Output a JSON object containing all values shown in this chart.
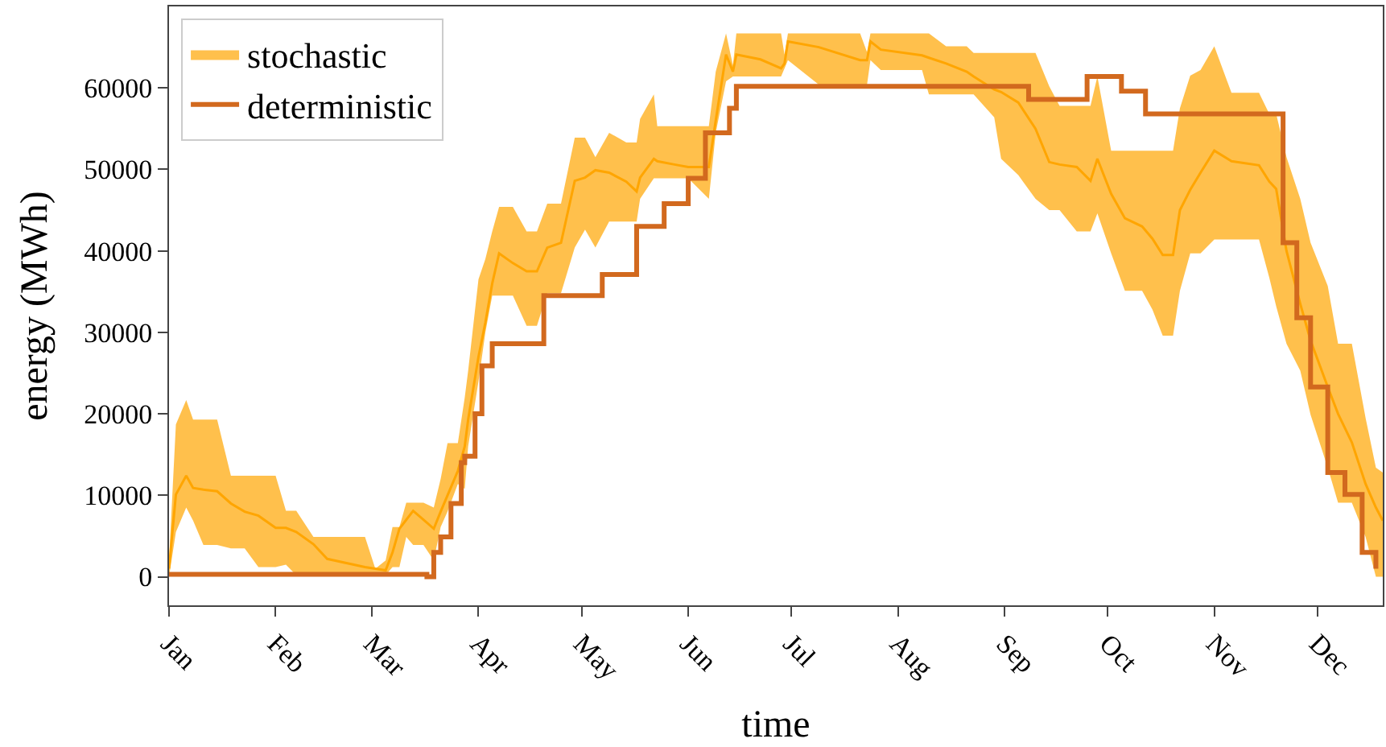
{
  "chart_data": {
    "type": "line",
    "xlabel": "time",
    "ylabel": "energy (MWh)",
    "xlim": [
      "--01-01",
      "--12-20"
    ],
    "xticks": [
      {
        "value": "--01-01",
        "label": "Jan"
      },
      {
        "value": "--02-01",
        "label": "Feb"
      },
      {
        "value": "--03-01",
        "label": "Mar"
      },
      {
        "value": "--04-01",
        "label": "Apr"
      },
      {
        "value": "--05-01",
        "label": "May"
      },
      {
        "value": "--06-01",
        "label": "Jun"
      },
      {
        "value": "--07-01",
        "label": "Jul"
      },
      {
        "value": "--08-01",
        "label": "Aug"
      },
      {
        "value": "--09-01",
        "label": "Sep"
      },
      {
        "value": "--10-01",
        "label": "Oct"
      },
      {
        "value": "--11-01",
        "label": "Nov"
      },
      {
        "value": "--12-01",
        "label": "Dec"
      }
    ],
    "ylim": [
      -3500,
      70000
    ],
    "yticks": [
      0,
      10000,
      20000,
      30000,
      40000,
      50000,
      60000
    ],
    "grid": false,
    "legend": "top left",
    "series": [
      {
        "name": "stochastic",
        "color": "#ffa500",
        "x": [
          "--01-01",
          "--01-03",
          "--01-06",
          "--01-08",
          "--01-11",
          "--01-15",
          "--01-19",
          "--01-23",
          "--01-27",
          "--02-01",
          "--02-04",
          "--02-07",
          "--02-12",
          "--02-16",
          "--02-27",
          "--03-02",
          "--03-05",
          "--03-07",
          "--03-09",
          "--03-11",
          "--03-13",
          "--03-16",
          "--03-19",
          "--03-21",
          "--03-23",
          "--03-26",
          "--03-28",
          "--03-29",
          "--04-01",
          "--04-03",
          "--04-05",
          "--04-07",
          "--04-11",
          "--04-15",
          "--04-18",
          "--04-21",
          "--04-25",
          "--04-29",
          "--05-02",
          "--05-05",
          "--05-09",
          "--05-14",
          "--05-17",
          "--05-18",
          "--05-22",
          "--05-23",
          "--05-28",
          "--06-01",
          "--06-07",
          "--06-09",
          "--06-12",
          "--06-14",
          "--06-15",
          "--06-22",
          "--06-28",
          "--06-29",
          "--06-30",
          "--07-09",
          "--07-21",
          "--07-23",
          "--07-24",
          "--07-27",
          "--08-08",
          "--08-10",
          "--08-15",
          "--08-21",
          "--08-23",
          "--08-29",
          "--08-31",
          "--09-05",
          "--09-10",
          "--09-14",
          "--09-17",
          "--09-22",
          "--09-26",
          "--09-28",
          "--10-02",
          "--10-06",
          "--10-11",
          "--10-14",
          "--10-17",
          "--10-20",
          "--10-22",
          "--10-25",
          "--10-28",
          "--11-01",
          "--11-06",
          "--11-14",
          "--11-17",
          "--11-19",
          "--11-22",
          "--11-26",
          "--11-29",
          "--12-04",
          "--12-07",
          "--12-11",
          "--12-15",
          "--12-18",
          "--12-20"
        ],
        "values": [
          1000,
          10100,
          12400,
          10900,
          10700,
          10500,
          9000,
          8000,
          7500,
          6000,
          6000,
          5500,
          4000,
          2200,
          1200,
          1000,
          800,
          3000,
          5900,
          7000,
          8100,
          7000,
          5900,
          8000,
          10000,
          13000,
          16000,
          19300,
          27000,
          31200,
          36000,
          39700,
          38500,
          37500,
          37500,
          40400,
          41000,
          48600,
          49000,
          49900,
          49600,
          48500,
          47300,
          49000,
          51300,
          51000,
          50600,
          50300,
          50300,
          56000,
          64100,
          62000,
          64100,
          63500,
          62400,
          63000,
          65700,
          65000,
          63400,
          63400,
          65700,
          64700,
          64000,
          63700,
          63000,
          62000,
          61400,
          59800,
          59500,
          58200,
          55000,
          50900,
          50600,
          50300,
          48600,
          51300,
          47000,
          44000,
          43000,
          41500,
          39500,
          39500,
          45000,
          47500,
          49600,
          52300,
          51000,
          50500,
          48500,
          47600,
          40000,
          33500,
          29000,
          23300,
          20000,
          16500,
          11400,
          8500,
          6900
        ],
        "lower": [
          0,
          5500,
          8500,
          6900,
          3900,
          3900,
          3500,
          3500,
          1200,
          1200,
          1500,
          200,
          200,
          200,
          200,
          200,
          200,
          1200,
          1200,
          4900,
          3900,
          3900,
          2000,
          6100,
          8000,
          11400,
          10800,
          16000,
          24000,
          30000,
          34500,
          34500,
          34500,
          30800,
          30800,
          34800,
          34800,
          40400,
          42600,
          40400,
          43600,
          43600,
          43600,
          46400,
          48900,
          48900,
          48900,
          48900,
          46400,
          54500,
          60800,
          61400,
          61400,
          61400,
          61400,
          62400,
          63400,
          60400,
          60400,
          60400,
          63400,
          62200,
          62200,
          59200,
          59200,
          59200,
          59200,
          56400,
          51300,
          49300,
          46400,
          45000,
          45000,
          42400,
          42400,
          44600,
          39700,
          35100,
          35100,
          32800,
          29600,
          29600,
          35100,
          39700,
          39700,
          41400,
          41400,
          41400,
          36700,
          33200,
          28600,
          25300,
          19900,
          13400,
          9100,
          9100,
          4900,
          0,
          0
        ],
        "upper": [
          2000,
          18700,
          21700,
          19300,
          19300,
          19300,
          12400,
          12400,
          12400,
          12400,
          8100,
          8100,
          4900,
          4900,
          4900,
          1000,
          2000,
          6100,
          6100,
          9100,
          9100,
          9100,
          8500,
          12000,
          16400,
          16400,
          22000,
          25300,
          36500,
          39000,
          42400,
          45400,
          45400,
          42400,
          42400,
          45800,
          45800,
          53900,
          53900,
          51500,
          54500,
          53300,
          53300,
          56200,
          59200,
          55300,
          55300,
          55300,
          55300,
          62000,
          66700,
          62800,
          66700,
          66700,
          66700,
          64100,
          66700,
          66700,
          66700,
          64400,
          66700,
          66700,
          66700,
          66700,
          65100,
          65100,
          64300,
          64300,
          64300,
          64300,
          64300,
          60200,
          57800,
          57800,
          57800,
          61400,
          52300,
          52300,
          52300,
          52300,
          52300,
          52300,
          57500,
          61500,
          62200,
          65100,
          59400,
          59400,
          56800,
          56800,
          51500,
          46400,
          41000,
          35700,
          28600,
          28600,
          19500,
          13400,
          12800
        ]
      },
      {
        "name": "deterministic",
        "type": "step",
        "color": "#d2691e",
        "x": [
          "--01-01",
          "--03-17",
          "--03-19",
          "--03-21",
          "--03-24",
          "--03-27",
          "--03-28",
          "--03-31",
          "--04-02",
          "--04-05",
          "--04-20",
          "--05-07",
          "--05-17",
          "--05-25",
          "--06-01",
          "--06-06",
          "--06-13",
          "--06-15",
          "--09-08",
          "--09-25",
          "--10-05",
          "--10-12",
          "--11-18",
          "--11-21",
          "--11-25",
          "--11-29",
          "--12-04",
          "--12-09",
          "--12-14",
          "--12-18"
        ],
        "values": [
          300,
          0,
          3000,
          4900,
          9000,
          14000,
          14800,
          20000,
          25900,
          28600,
          34500,
          37100,
          43000,
          45800,
          48900,
          54500,
          57500,
          60200,
          58600,
          61400,
          59600,
          56800,
          56800,
          41000,
          31800,
          23300,
          12800,
          10100,
          3000,
          1000
        ]
      }
    ]
  }
}
